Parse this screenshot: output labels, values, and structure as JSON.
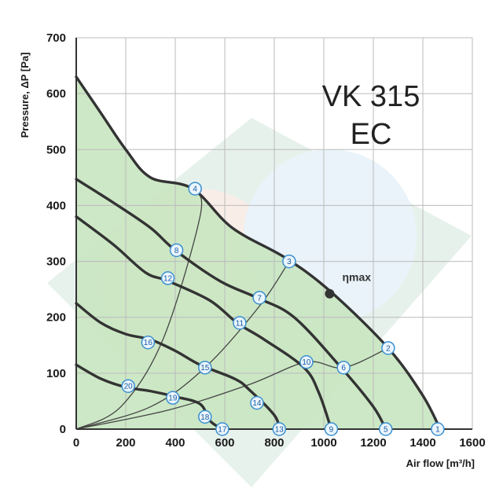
{
  "chart_data": {
    "type": "line",
    "title_lines": [
      "VK 315",
      "EC"
    ],
    "xlabel": "Air flow [m³/h]",
    "ylabel": "Pressure, ΔP [Pa]",
    "xlim": [
      0,
      1600
    ],
    "ylim": [
      0,
      700
    ],
    "xticks": [
      0,
      200,
      400,
      600,
      800,
      1000,
      1200,
      1400,
      1600
    ],
    "yticks": [
      0,
      100,
      200,
      300,
      400,
      500,
      600,
      700
    ],
    "grid": true,
    "colors": {
      "fill": "#c8e6c0",
      "curve": "#333333",
      "marker_stroke": "#3a8fd0",
      "marker_fill": "#eaf5fd",
      "marker_text": "#1a5aa0",
      "eta": "#333333"
    },
    "fan_curves": [
      {
        "points": [
          [
            0,
            630
          ],
          [
            100,
            565
          ],
          [
            200,
            500
          ],
          [
            300,
            450
          ],
          [
            470,
            430
          ],
          [
            630,
            360
          ],
          [
            850,
            305
          ],
          [
            1030,
            245
          ],
          [
            1260,
            145
          ],
          [
            1400,
            60
          ],
          [
            1470,
            0
          ]
        ]
      },
      {
        "points": [
          [
            0,
            447
          ],
          [
            150,
            405
          ],
          [
            300,
            360
          ],
          [
            400,
            320
          ],
          [
            580,
            265
          ],
          [
            730,
            235
          ],
          [
            880,
            200
          ],
          [
            1070,
            110
          ],
          [
            1200,
            40
          ],
          [
            1250,
            0
          ]
        ]
      },
      {
        "points": [
          [
            0,
            380
          ],
          [
            150,
            330
          ],
          [
            280,
            280
          ],
          [
            370,
            265
          ],
          [
            540,
            230
          ],
          [
            650,
            190
          ],
          [
            760,
            160
          ],
          [
            920,
            110
          ],
          [
            980,
            65
          ],
          [
            1030,
            0
          ]
        ]
      },
      {
        "points": [
          [
            0,
            225
          ],
          [
            100,
            190
          ],
          [
            200,
            170
          ],
          [
            300,
            160
          ],
          [
            400,
            140
          ],
          [
            500,
            115
          ],
          [
            640,
            90
          ],
          [
            700,
            70
          ],
          [
            800,
            25
          ],
          [
            820,
            0
          ]
        ]
      },
      {
        "points": [
          [
            0,
            115
          ],
          [
            100,
            90
          ],
          [
            200,
            75
          ],
          [
            300,
            68
          ],
          [
            400,
            58
          ],
          [
            500,
            45
          ],
          [
            540,
            15
          ],
          [
            590,
            0
          ]
        ]
      }
    ],
    "system_curves": [
      {
        "points": [
          [
            0,
            0
          ],
          [
            180,
            40
          ],
          [
            350,
            160
          ],
          [
            500,
            380
          ],
          [
            480,
            430
          ]
        ]
      },
      {
        "points": [
          [
            0,
            0
          ],
          [
            300,
            40
          ],
          [
            520,
            110
          ],
          [
            740,
            220
          ],
          [
            860,
            300
          ]
        ]
      },
      {
        "points": [
          [
            0,
            0
          ],
          [
            380,
            35
          ],
          [
            700,
            80
          ],
          [
            930,
            120
          ],
          [
            1080,
            110
          ],
          [
            1260,
            145
          ]
        ]
      },
      {
        "points": [
          [
            0,
            0
          ],
          [
            600,
            0
          ],
          [
            1000,
            0
          ],
          [
            1460,
            0
          ]
        ]
      }
    ],
    "markers": [
      {
        "label": "1",
        "x": 1460,
        "y": 0
      },
      {
        "label": "2",
        "x": 1260,
        "y": 145
      },
      {
        "label": "3",
        "x": 860,
        "y": 300
      },
      {
        "label": "4",
        "x": 480,
        "y": 430
      },
      {
        "label": "5",
        "x": 1250,
        "y": 0
      },
      {
        "label": "6",
        "x": 1080,
        "y": 110
      },
      {
        "label": "7",
        "x": 740,
        "y": 235
      },
      {
        "label": "8",
        "x": 405,
        "y": 320
      },
      {
        "label": "9",
        "x": 1030,
        "y": 0
      },
      {
        "label": "10",
        "x": 930,
        "y": 120
      },
      {
        "label": "11",
        "x": 660,
        "y": 190
      },
      {
        "label": "12",
        "x": 370,
        "y": 270
      },
      {
        "label": "13",
        "x": 820,
        "y": 0
      },
      {
        "label": "14",
        "x": 730,
        "y": 47
      },
      {
        "label": "15",
        "x": 520,
        "y": 110
      },
      {
        "label": "16",
        "x": 290,
        "y": 155
      },
      {
        "label": "17",
        "x": 590,
        "y": 0
      },
      {
        "label": "18",
        "x": 520,
        "y": 22
      },
      {
        "label": "19",
        "x": 390,
        "y": 56
      },
      {
        "label": "20",
        "x": 210,
        "y": 77
      }
    ],
    "eta_max": {
      "label": "ηmax",
      "x": 1030,
      "y": 245
    }
  }
}
